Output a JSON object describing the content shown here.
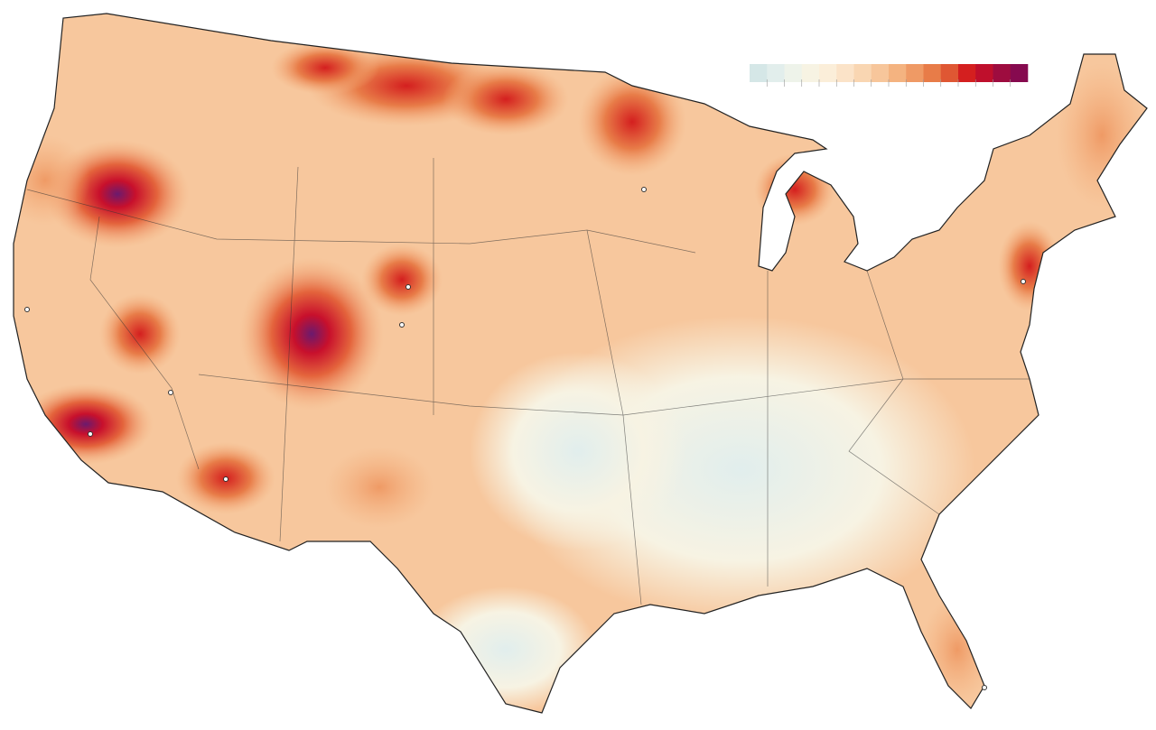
{
  "legend": {
    "colors": [
      "#d5e7e7",
      "#e2eeec",
      "#eef3ea",
      "#f7f3e3",
      "#fbeed9",
      "#fbe3c8",
      "#f9d6b2",
      "#f7c69b",
      "#f4b380",
      "#ef9a65",
      "#e87c48",
      "#df5733",
      "#d41f1f",
      "#bf0f2c",
      "#9e0c3f",
      "#860a4f"
    ]
  }
}
